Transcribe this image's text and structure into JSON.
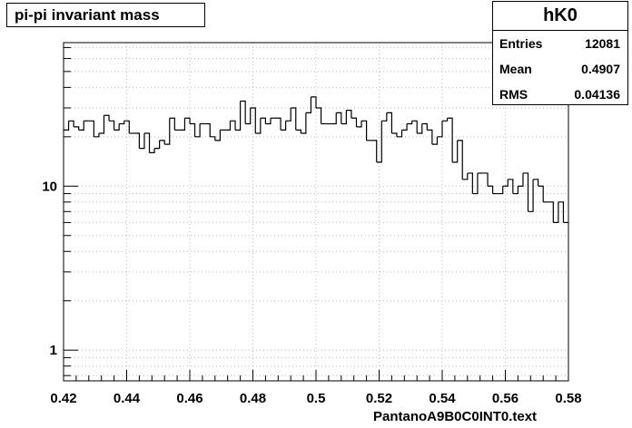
{
  "chart_data": {
    "type": "bar",
    "style": "step-histogram",
    "title": "pi-pi invariant mass",
    "xlabel": "PantanoA9B0C0INT0.text",
    "ylabel": "",
    "log_y": true,
    "xlim": [
      0.42,
      0.58
    ],
    "ylim": [
      0.65,
      75
    ],
    "x_ticks": [
      "0.42",
      "0.44",
      "0.46",
      "0.48",
      "0.5",
      "0.52",
      "0.54",
      "0.56",
      "0.58"
    ],
    "y_tick_labels": [
      "1",
      "10"
    ],
    "grid": true,
    "line_color": "#000000",
    "bin_width": 0.0016,
    "x": [
      0.4208,
      0.4224,
      0.424,
      0.4256,
      0.4272,
      0.4288,
      0.4304,
      0.432,
      0.4336,
      0.4352,
      0.4368,
      0.4384,
      0.44,
      0.4416,
      0.4432,
      0.4448,
      0.4464,
      0.448,
      0.4496,
      0.4512,
      0.4528,
      0.4544,
      0.456,
      0.4576,
      0.4592,
      0.4608,
      0.4624,
      0.464,
      0.4656,
      0.4672,
      0.4688,
      0.4704,
      0.472,
      0.4736,
      0.4752,
      0.4768,
      0.4784,
      0.48,
      0.4816,
      0.4832,
      0.4848,
      0.4864,
      0.488,
      0.4896,
      0.4912,
      0.4928,
      0.4944,
      0.496,
      0.4976,
      0.4992,
      0.5008,
      0.5024,
      0.504,
      0.5056,
      0.5072,
      0.5088,
      0.5104,
      0.512,
      0.5136,
      0.5152,
      0.5168,
      0.5184,
      0.52,
      0.5216,
      0.5232,
      0.5248,
      0.5264,
      0.528,
      0.5296,
      0.5312,
      0.5328,
      0.5344,
      0.536,
      0.5376,
      0.5392,
      0.5408,
      0.5424,
      0.544,
      0.5456,
      0.5472,
      0.5488,
      0.5504,
      0.552,
      0.5536,
      0.5552,
      0.5568,
      0.5584,
      0.56,
      0.5616,
      0.5632,
      0.5648,
      0.5664,
      0.568,
      0.5696,
      0.5712,
      0.5728,
      0.5744,
      0.576,
      0.5776,
      0.5792
    ],
    "values": [
      22,
      25,
      23,
      22,
      25,
      25,
      20,
      21,
      27,
      25,
      22,
      24,
      25,
      21,
      21,
      17,
      21,
      16,
      17,
      19,
      18,
      26,
      22,
      22,
      26,
      24,
      20,
      24,
      24,
      20,
      19,
      22,
      22,
      25,
      22,
      33,
      24,
      30,
      21,
      26,
      24,
      26,
      26,
      22,
      25,
      30,
      22,
      21,
      28,
      35,
      30,
      24,
      24,
      24,
      28,
      24,
      29,
      26,
      23,
      25,
      19,
      19,
      14,
      25,
      28,
      21,
      20,
      22,
      24,
      25,
      21,
      24,
      22,
      18,
      20,
      25,
      26,
      14,
      19,
      11,
      12,
      9,
      12,
      12,
      10,
      9,
      9,
      10,
      11,
      9,
      10,
      12,
      7,
      11,
      10,
      8,
      8,
      6,
      8,
      6
    ]
  },
  "stats": {
    "name": "hK0",
    "rows": [
      {
        "label": "Entries",
        "value": "12081"
      },
      {
        "label": "Mean",
        "value": "0.4907"
      },
      {
        "label": "RMS",
        "value": "0.04136"
      }
    ]
  }
}
